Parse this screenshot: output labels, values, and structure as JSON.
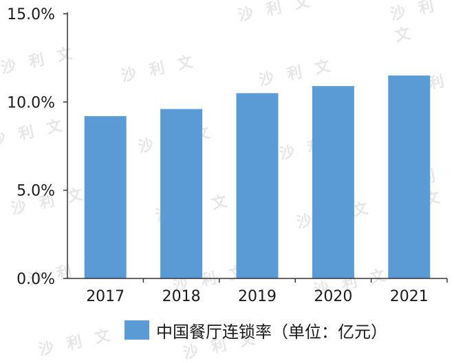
{
  "colors": {
    "bar": "#5b9bd5",
    "axis": "#333333",
    "text": "#1a1a1a",
    "watermark": "#e6e6e6"
  },
  "watermark_text": "沙 利 文",
  "chart_data": {
    "type": "bar",
    "categories": [
      "2017",
      "2018",
      "2019",
      "2020",
      "2021"
    ],
    "series": [
      {
        "name": "中国餐厅连锁率（单位：亿元）",
        "values": [
          9.2,
          9.6,
          10.5,
          10.9,
          11.5
        ]
      }
    ],
    "yticks": [
      "0.0%",
      "5.0%",
      "10.0%",
      "15.0%"
    ],
    "ylim": [
      0,
      15
    ],
    "ytick_values": [
      0,
      5,
      10,
      15
    ],
    "grid": false,
    "legend_position": "bottom",
    "title": "",
    "xlabel": "",
    "ylabel": ""
  }
}
